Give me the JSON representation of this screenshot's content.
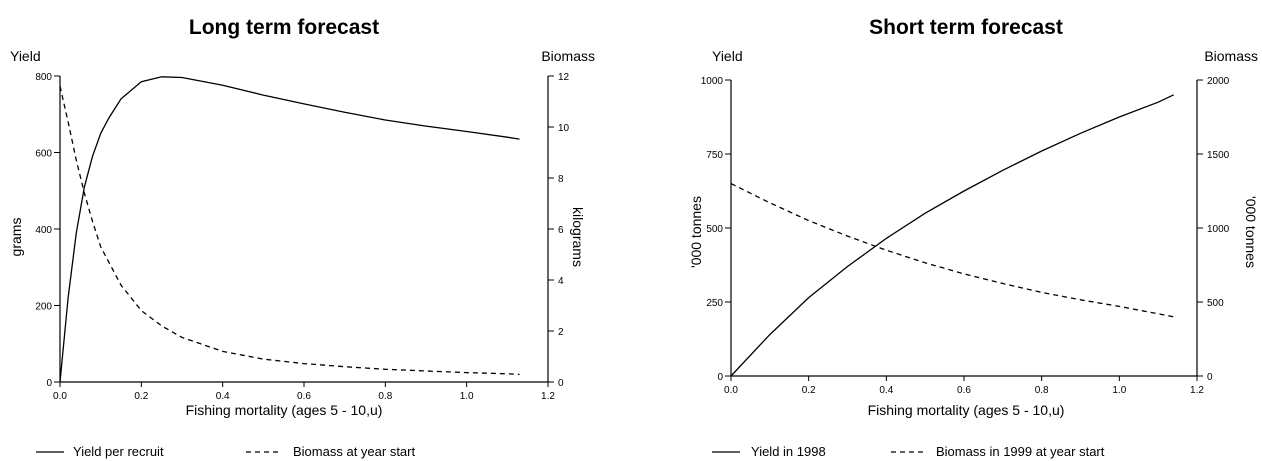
{
  "chart_data": [
    {
      "type": "line",
      "title": "Long term forecast",
      "left_axis_header": "Yield",
      "right_axis_header": "Biomass",
      "xlabel": "Fishing mortality (ages 5 - 10,u)",
      "ylabel_left": "grams",
      "ylabel_right": "kilograms",
      "xlim": [
        0,
        1.2
      ],
      "ylim_left": [
        0,
        800
      ],
      "ylim_right": [
        0,
        12
      ],
      "x_ticks": [
        "0.0",
        "0.2",
        "0.4",
        "0.6",
        "0.8",
        "1.0",
        "1.2"
      ],
      "y_left_ticks": [
        "0",
        "200",
        "400",
        "600",
        "800"
      ],
      "y_right_ticks": [
        "0",
        "2",
        "4",
        "6",
        "8",
        "10",
        "12"
      ],
      "series": [
        {
          "name": "Yield per recruit",
          "axis": "left",
          "style": "solid",
          "x": [
            0,
            0.02,
            0.04,
            0.06,
            0.08,
            0.1,
            0.12,
            0.15,
            0.2,
            0.25,
            0.3,
            0.4,
            0.5,
            0.6,
            0.7,
            0.8,
            0.9,
            1.0,
            1.1,
            1.13
          ],
          "y": [
            0,
            220,
            390,
            510,
            590,
            650,
            690,
            740,
            785,
            798,
            796,
            776,
            750,
            727,
            705,
            685,
            669,
            655,
            640,
            635
          ]
        },
        {
          "name": "Biomass at year start",
          "axis": "right",
          "style": "dashed",
          "x": [
            0,
            0.02,
            0.04,
            0.06,
            0.08,
            0.1,
            0.15,
            0.2,
            0.25,
            0.3,
            0.4,
            0.5,
            0.6,
            0.7,
            0.8,
            0.9,
            1.0,
            1.1,
            1.13
          ],
          "y": [
            11.6,
            10.2,
            8.7,
            7.4,
            6.3,
            5.3,
            3.8,
            2.8,
            2.2,
            1.75,
            1.2,
            0.9,
            0.72,
            0.6,
            0.5,
            0.43,
            0.37,
            0.32,
            0.3
          ]
        }
      ]
    },
    {
      "type": "line",
      "title": "Short term forecast",
      "left_axis_header": "Yield",
      "right_axis_header": "Biomass",
      "xlabel": "Fishing mortality (ages 5 - 10,u)",
      "ylabel_left": "'000 tonnes",
      "ylabel_right": "'000 tonnes",
      "xlim": [
        0,
        1.2
      ],
      "ylim_left": [
        0,
        1000
      ],
      "ylim_right": [
        0,
        2000
      ],
      "x_ticks": [
        "0.0",
        "0.2",
        "0.4",
        "0.6",
        "0.8",
        "1.0",
        "1.2"
      ],
      "y_left_ticks": [
        "0",
        "250",
        "500",
        "750",
        "1000"
      ],
      "y_right_ticks": [
        "0",
        "500",
        "1000",
        "1500",
        "2000"
      ],
      "series": [
        {
          "name": "Yield in 1998",
          "axis": "left",
          "style": "solid",
          "x": [
            0,
            0.1,
            0.2,
            0.3,
            0.4,
            0.5,
            0.6,
            0.7,
            0.8,
            0.9,
            1.0,
            1.1,
            1.14
          ],
          "y": [
            0,
            140,
            265,
            370,
            465,
            550,
            625,
            695,
            760,
            820,
            875,
            925,
            950
          ]
        },
        {
          "name": "Biomass in 1999 at year start",
          "axis": "right",
          "style": "dashed",
          "x": [
            0,
            0.1,
            0.2,
            0.3,
            0.4,
            0.5,
            0.6,
            0.7,
            0.8,
            0.9,
            1.0,
            1.1,
            1.14
          ],
          "y": [
            1300,
            1170,
            1050,
            945,
            850,
            765,
            690,
            625,
            565,
            515,
            470,
            420,
            400
          ]
        }
      ]
    }
  ]
}
